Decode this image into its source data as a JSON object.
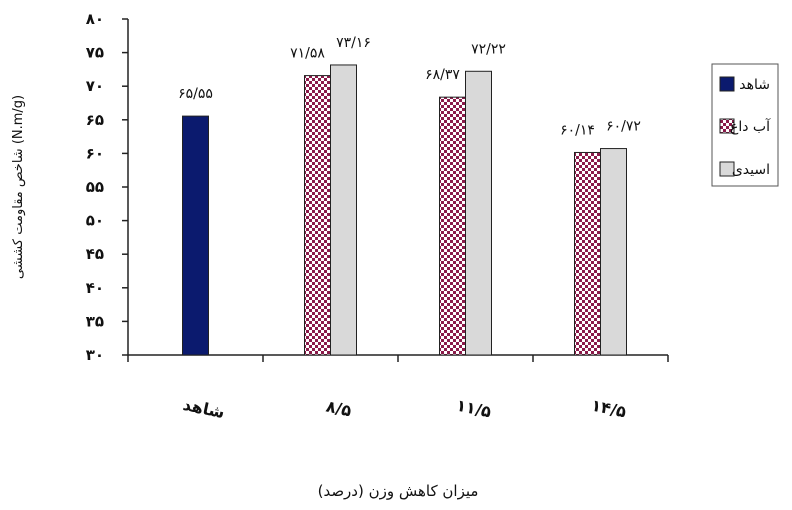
{
  "chart_data": {
    "type": "bar",
    "title": "",
    "xlabel": "میزان کاهش وزن (درصد)",
    "ylabel": "شاخص مقاومت کششی (N.m/g)",
    "ylim": [
      30,
      80
    ],
    "yticks": [
      30,
      35,
      40,
      45,
      50,
      55,
      60,
      65,
      70,
      75,
      80
    ],
    "ytick_labels": [
      "۳۰",
      "۳۵",
      "۴۰",
      "۴۵",
      "۵۰",
      "۵۵",
      "۶۰",
      "۶۵",
      "۷۰",
      "۷۵",
      "۸۰"
    ],
    "categories": [
      "شاهد",
      "۸/۵",
      "۱۱/۵",
      "۱۴/۵"
    ],
    "series": [
      {
        "name": "شاهد",
        "color": "#0b1a6e",
        "pattern": "solid",
        "values": [
          65.55,
          null,
          null,
          null
        ],
        "labels": [
          "۶۵/۵۵",
          "",
          "",
          ""
        ]
      },
      {
        "name": "آب داغ",
        "color": "#8b1a4a",
        "pattern": "checker",
        "values": [
          null,
          71.58,
          68.37,
          60.14
        ],
        "labels": [
          "",
          "۷۱/۵۸",
          "۶۸/۳۷",
          "۶۰/۱۴"
        ]
      },
      {
        "name": "اسیدی",
        "color": "#d9d9d9",
        "pattern": "solid",
        "values": [
          null,
          73.16,
          72.22,
          60.72
        ],
        "labels": [
          "",
          "۷۳/۱۶",
          "۷۲/۲۲",
          "۶۰/۷۲"
        ]
      }
    ],
    "legend_position": "right",
    "grid": false
  }
}
